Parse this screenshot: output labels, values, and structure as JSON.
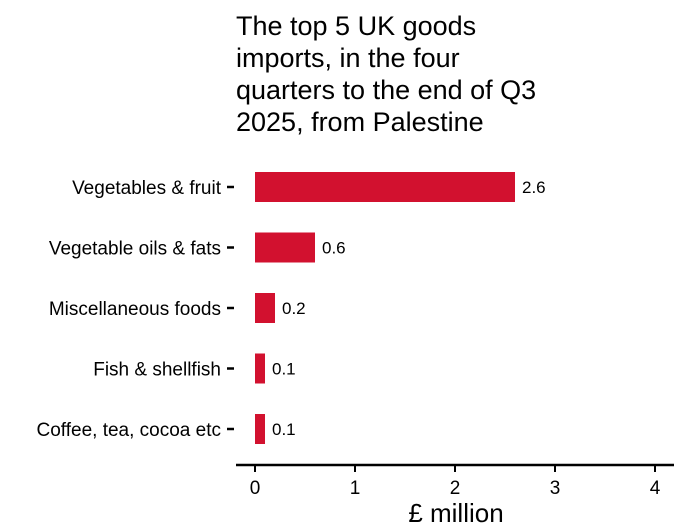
{
  "chart_data": {
    "type": "bar",
    "orientation": "horizontal",
    "title": "The top 5 UK goods\nimports, in the four\nquarters to the end of Q3\n2025, from Palestine",
    "categories": [
      "Vegetables & fruit",
      "Vegetable oils & fats",
      "Miscellaneous foods",
      "Fish & shellfish",
      "Coffee, tea, cocoa etc"
    ],
    "values": [
      2.6,
      0.6,
      0.2,
      0.1,
      0.1
    ],
    "value_labels": [
      "2.6",
      "0.6",
      "0.2",
      "0.1",
      "0.1"
    ],
    "xlabel": "£ million",
    "ylabel": "",
    "xlim": [
      0,
      4
    ],
    "xticks": [
      "0",
      "1",
      "2",
      "3",
      "4"
    ],
    "grid": false,
    "legend": "none",
    "bar_color": "#D2112F"
  }
}
